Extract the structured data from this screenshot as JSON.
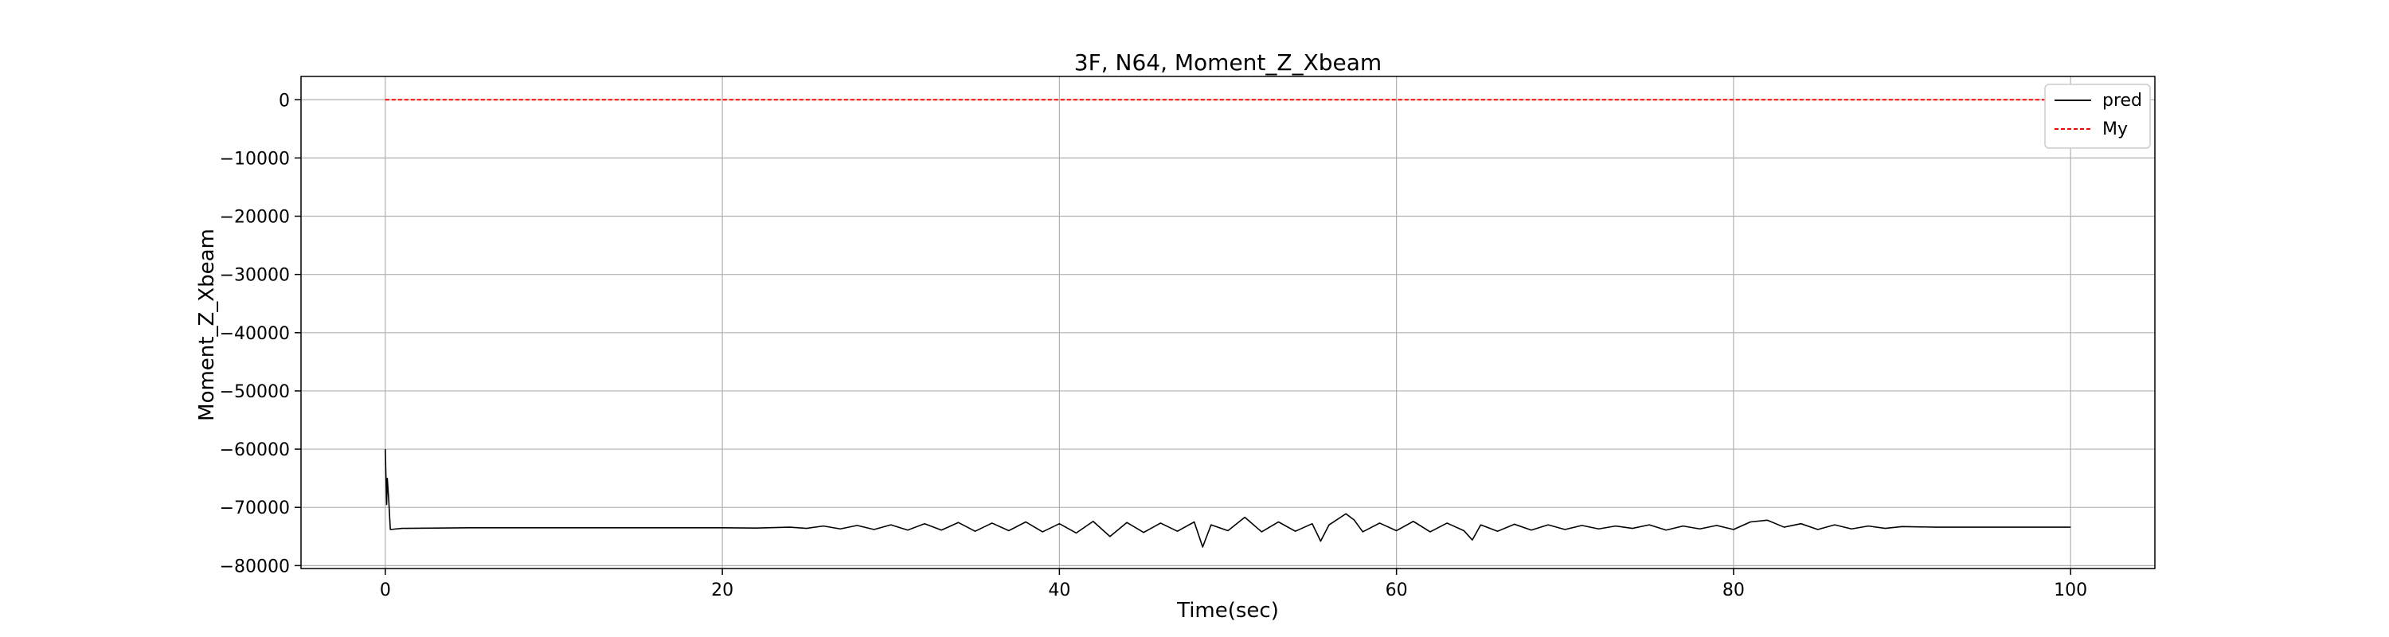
{
  "chart_data": {
    "type": "line",
    "title": "3F, N64, Moment_Z_Xbeam",
    "xlabel": "Time(sec)",
    "ylabel": "Moment_Z_Xbeam",
    "xlim": [
      -5,
      105
    ],
    "ylim": [
      -80500,
      4000
    ],
    "xticks": [
      0,
      20,
      40,
      60,
      80,
      100
    ],
    "yticks": [
      0,
      -10000,
      -20000,
      -30000,
      -40000,
      -50000,
      -60000,
      -70000,
      -80000
    ],
    "xtick_labels": [
      "0",
      "20",
      "40",
      "60",
      "80",
      "100"
    ],
    "ytick_labels": [
      "0",
      "−10000",
      "−20000",
      "−30000",
      "−40000",
      "−50000",
      "−60000",
      "−70000",
      "−80000"
    ],
    "grid": true,
    "legend_position": "top-right",
    "series": [
      {
        "name": "pred",
        "color": "#000000",
        "style": "solid",
        "points": [
          [
            0.0,
            -60000
          ],
          [
            0.08,
            -69500
          ],
          [
            0.12,
            -65000
          ],
          [
            0.2,
            -68500
          ],
          [
            0.3,
            -73800
          ],
          [
            1,
            -73600
          ],
          [
            5,
            -73500
          ],
          [
            10,
            -73500
          ],
          [
            15,
            -73500
          ],
          [
            20,
            -73500
          ],
          [
            22,
            -73550
          ],
          [
            24,
            -73400
          ],
          [
            25,
            -73600
          ],
          [
            26,
            -73200
          ],
          [
            27,
            -73700
          ],
          [
            28,
            -73100
          ],
          [
            29,
            -73800
          ],
          [
            30,
            -73000
          ],
          [
            31,
            -73900
          ],
          [
            32,
            -72800
          ],
          [
            33,
            -73900
          ],
          [
            34,
            -72600
          ],
          [
            35,
            -74100
          ],
          [
            36,
            -72700
          ],
          [
            37,
            -74000
          ],
          [
            38,
            -72500
          ],
          [
            39,
            -74200
          ],
          [
            40,
            -72800
          ],
          [
            41,
            -74400
          ],
          [
            42,
            -72400
          ],
          [
            43,
            -75000
          ],
          [
            44,
            -72600
          ],
          [
            45,
            -74300
          ],
          [
            46,
            -72700
          ],
          [
            47,
            -74100
          ],
          [
            48,
            -72500
          ],
          [
            48.5,
            -76800
          ],
          [
            49,
            -73000
          ],
          [
            50,
            -74000
          ],
          [
            51,
            -71700
          ],
          [
            52,
            -74200
          ],
          [
            53,
            -72500
          ],
          [
            54,
            -74100
          ],
          [
            55,
            -72800
          ],
          [
            55.5,
            -75800
          ],
          [
            56,
            -73000
          ],
          [
            57,
            -71100
          ],
          [
            57.5,
            -72200
          ],
          [
            58,
            -74200
          ],
          [
            59,
            -72700
          ],
          [
            60,
            -74000
          ],
          [
            61,
            -72400
          ],
          [
            62,
            -74200
          ],
          [
            63,
            -72700
          ],
          [
            64,
            -74000
          ],
          [
            64.5,
            -75600
          ],
          [
            65,
            -73000
          ],
          [
            66,
            -74100
          ],
          [
            67,
            -72900
          ],
          [
            68,
            -73900
          ],
          [
            69,
            -73000
          ],
          [
            70,
            -73800
          ],
          [
            71,
            -73100
          ],
          [
            72,
            -73700
          ],
          [
            73,
            -73200
          ],
          [
            74,
            -73600
          ],
          [
            75,
            -73000
          ],
          [
            76,
            -73900
          ],
          [
            77,
            -73200
          ],
          [
            78,
            -73700
          ],
          [
            79,
            -73100
          ],
          [
            80,
            -73800
          ],
          [
            81,
            -72500
          ],
          [
            82,
            -72200
          ],
          [
            83,
            -73400
          ],
          [
            84,
            -72800
          ],
          [
            85,
            -73800
          ],
          [
            86,
            -73000
          ],
          [
            87,
            -73700
          ],
          [
            88,
            -73200
          ],
          [
            89,
            -73600
          ],
          [
            90,
            -73300
          ],
          [
            92,
            -73400
          ],
          [
            95,
            -73400
          ],
          [
            100,
            -73400
          ]
        ]
      },
      {
        "name": "My",
        "color": "#ff0000",
        "style": "dashed",
        "points": [
          [
            0,
            0
          ],
          [
            100,
            0
          ]
        ]
      }
    ]
  }
}
